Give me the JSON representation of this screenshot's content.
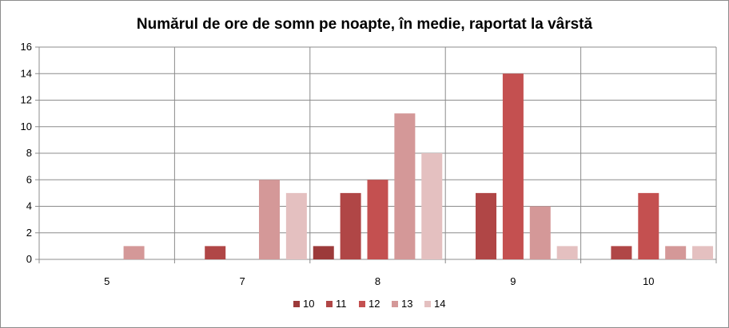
{
  "chart_data": {
    "type": "bar",
    "title": "Numărul de ore de somn pe noapte,  în medie, raportat la vârstă",
    "xlabel": "",
    "ylabel": "",
    "categories": [
      "5",
      "7",
      "8",
      "9",
      "10"
    ],
    "ylim": [
      0,
      16
    ],
    "yticks": [
      0,
      2,
      4,
      6,
      8,
      10,
      12,
      14,
      16
    ],
    "grid": true,
    "legend_position": "bottom",
    "series": [
      {
        "name": "10",
        "color": "#9c3a3a",
        "values": [
          0,
          0,
          1,
          0,
          0
        ]
      },
      {
        "name": "11",
        "color": "#b04646",
        "values": [
          0,
          1,
          5,
          5,
          1
        ]
      },
      {
        "name": "12",
        "color": "#c45050",
        "values": [
          0,
          0,
          6,
          14,
          5
        ]
      },
      {
        "name": "13",
        "color": "#d49898",
        "values": [
          1,
          6,
          11,
          4,
          1
        ]
      },
      {
        "name": "14",
        "color": "#e4c0c0",
        "values": [
          0,
          5,
          8,
          1,
          1
        ]
      }
    ]
  }
}
